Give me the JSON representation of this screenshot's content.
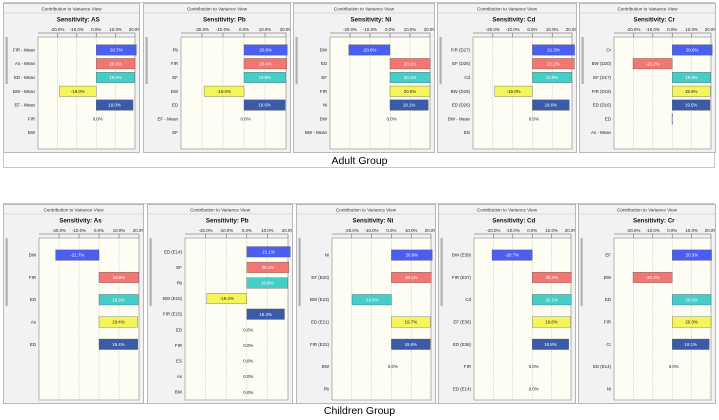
{
  "window_title": "Contribution to Variance View",
  "groups": [
    {
      "name": "adult",
      "label": "Adult Group"
    },
    {
      "name": "children",
      "label": "Children Group"
    }
  ],
  "colors": {
    "blue": "#4a5ff0",
    "red": "#f27672",
    "teal": "#45cdc8",
    "yellow": "#f3f55b",
    "navy": "#3b5aa8",
    "plot_bg": "#fdfdf3"
  },
  "chart_data": [
    {
      "group": "adult",
      "type": "bar",
      "title": "Sensitivity: AS",
      "xlim": [
        -30,
        20
      ],
      "ticks": [
        "-20.0%",
        "-10.0%",
        "0.0%",
        "10.0%",
        "20.0%"
      ],
      "rows": [
        {
          "label": "FIR - Mean",
          "value": 20.7,
          "text": "20.7%",
          "color": "blue"
        },
        {
          "label": "As - Mean",
          "value": 20.0,
          "text": "20.0%",
          "color": "red"
        },
        {
          "label": "ED - Mean",
          "value": 19.8,
          "text": "19.8%",
          "color": "teal"
        },
        {
          "label": "BW - Mean",
          "value": -19.0,
          "text": "-19.0%",
          "color": "yellow"
        },
        {
          "label": "EF - Mean",
          "value": 19.0,
          "text": "19.0%",
          "color": "navy"
        },
        {
          "label": "FIR",
          "value": 0.0,
          "text": "0.0%",
          "color": "blue"
        },
        {
          "label": "BW",
          "value": 0.0,
          "text": "",
          "color": "blue"
        }
      ]
    },
    {
      "group": "adult",
      "type": "bar",
      "title": "Sensitivity: Pb",
      "xlim": [
        -30,
        20
      ],
      "ticks": [
        "-20.0%",
        "-10.0%",
        "0.0%",
        "10.0%",
        "20.0%"
      ],
      "rows": [
        {
          "label": "Pb",
          "value": 20.6,
          "text": "20.6%",
          "color": "blue"
        },
        {
          "label": "FIR",
          "value": 20.4,
          "text": "20.4%",
          "color": "red"
        },
        {
          "label": "EF",
          "value": 19.8,
          "text": "19.8%",
          "color": "teal"
        },
        {
          "label": "BW",
          "value": -19.0,
          "text": "-19.0%",
          "color": "yellow"
        },
        {
          "label": "ED",
          "value": 19.6,
          "text": "19.6%",
          "color": "navy"
        },
        {
          "label": "EF - Mean",
          "value": 0.0,
          "text": "0.0%",
          "color": "blue"
        },
        {
          "label": "EF",
          "value": 0.0,
          "text": "",
          "color": "blue"
        }
      ]
    },
    {
      "group": "adult",
      "type": "bar",
      "title": "Sensitivity: Ni",
      "xlim": [
        -30,
        20
      ],
      "ticks": [
        "-20.0%",
        "-10.0%",
        "0.0%",
        "10.0%",
        "20.0%"
      ],
      "rows": [
        {
          "label": "BW",
          "value": -20.6,
          "text": "-20.6%",
          "color": "blue"
        },
        {
          "label": "ED",
          "value": 20.1,
          "text": "20.1%",
          "color": "red"
        },
        {
          "label": "EF",
          "value": 20.1,
          "text": "20.1%",
          "color": "teal"
        },
        {
          "label": "FIR",
          "value": 20.0,
          "text": "20.0%",
          "color": "yellow"
        },
        {
          "label": "Ni",
          "value": 19.1,
          "text": "19.1%",
          "color": "navy"
        },
        {
          "label": "BW",
          "value": 0.0,
          "text": "0.0%",
          "color": "blue"
        },
        {
          "label": "BW - Mean",
          "value": 0.0,
          "text": "",
          "color": "blue"
        }
      ]
    },
    {
      "group": "adult",
      "type": "bar",
      "title": "Sensitivity: Cd",
      "xlim": [
        -30,
        20
      ],
      "ticks": [
        "-20.0%",
        "-10.0%",
        "0.0%",
        "10.0%",
        "20.0%"
      ],
      "rows": [
        {
          "label": "FIR (D27)",
          "value": 21.3,
          "text": "21.3%",
          "color": "blue"
        },
        {
          "label": "EF (D26)",
          "value": 21.2,
          "text": "21.2%",
          "color": "red"
        },
        {
          "label": "Cd",
          "value": 19.8,
          "text": "19.8%",
          "color": "teal"
        },
        {
          "label": "BW (D29)",
          "value": -19.0,
          "text": "-19.0%",
          "color": "yellow"
        },
        {
          "label": "ED (D26)",
          "value": 18.6,
          "text": "18.6%",
          "color": "navy"
        },
        {
          "label": "BW - Mean",
          "value": 0.0,
          "text": "0.0%",
          "color": "blue"
        },
        {
          "label": "ED",
          "value": 0.0,
          "text": "",
          "color": "blue"
        }
      ]
    },
    {
      "group": "adult",
      "type": "bar",
      "title": "Sensitivity: Cr",
      "xlim": [
        -30,
        20
      ],
      "ticks": [
        "-20.0%",
        "-10.0%",
        "0.0%",
        "10.0%",
        "20.0%"
      ],
      "rows": [
        {
          "label": "Cr",
          "value": 20.6,
          "text": "20.6%",
          "color": "blue"
        },
        {
          "label": "BW (D20)",
          "value": -20.2,
          "text": "-20.2%",
          "color": "red"
        },
        {
          "label": "EF (D17)",
          "value": 19.9,
          "text": "19.9%",
          "color": "teal"
        },
        {
          "label": "FIR (D18)",
          "value": 19.6,
          "text": "19.6%",
          "color": "yellow"
        },
        {
          "label": "ED (D16)",
          "value": 19.5,
          "text": "19.5%",
          "color": "navy"
        },
        {
          "label": "ED",
          "value": -0.1,
          "text": "-0.1%",
          "color": "blue"
        },
        {
          "label": "As - Mean",
          "value": 0.0,
          "text": "",
          "color": "blue"
        }
      ]
    },
    {
      "group": "children",
      "type": "bar",
      "title": "Sensitivity: As",
      "xlim": [
        -30,
        20
      ],
      "ticks": [
        "-20.0%",
        "-10.0%",
        "0.0%",
        "10.0%",
        "20.0%"
      ],
      "rows": [
        {
          "label": "BW",
          "value": -21.7,
          "text": "-21.7%",
          "color": "blue"
        },
        {
          "label": "FIR",
          "value": 19.9,
          "text": "19.9%",
          "color": "red"
        },
        {
          "label": "ED",
          "value": 19.6,
          "text": "19.6%",
          "color": "teal"
        },
        {
          "label": "As",
          "value": 19.4,
          "text": "19.4%",
          "color": "yellow"
        },
        {
          "label": "ED",
          "value": 19.4,
          "text": "19.4%",
          "color": "navy"
        }
      ]
    },
    {
      "group": "children",
      "type": "bar",
      "title": "Sensitivity: Pb",
      "xlim": [
        -30,
        20
      ],
      "ticks": [
        "-20.0%",
        "-10.0%",
        "0.0%",
        "10.0%",
        "20.0%"
      ],
      "rows": [
        {
          "label": "ED (E14)",
          "value": 21.1,
          "text": "21.1%",
          "color": "blue"
        },
        {
          "label": "EF",
          "value": 20.4,
          "text": "20.4%",
          "color": "red"
        },
        {
          "label": "Pb",
          "value": 19.8,
          "text": "19.8%",
          "color": "teal"
        },
        {
          "label": "BW (E16)",
          "value": -19.4,
          "text": "-19.4%",
          "color": "yellow"
        },
        {
          "label": "FIR (E15)",
          "value": 18.3,
          "text": "18.3%",
          "color": "navy"
        },
        {
          "label": "ED",
          "value": 0.0,
          "text": "0.0%",
          "color": "blue"
        },
        {
          "label": "FIR",
          "value": 0.0,
          "text": "0.0%",
          "color": "blue"
        },
        {
          "label": "ES",
          "value": 0.0,
          "text": "0.0%",
          "color": "blue"
        },
        {
          "label": "As",
          "value": 0.0,
          "text": "0.0%",
          "color": "blue"
        },
        {
          "label": "BW",
          "value": 0.0,
          "text": "0.0%",
          "color": "blue"
        }
      ]
    },
    {
      "group": "children",
      "type": "bar",
      "title": "Sensitivity: Ni",
      "xlim": [
        -30,
        20
      ],
      "ticks": [
        "-20.0%",
        "-10.0%",
        "0.0%",
        "10.0%",
        "20.0%"
      ],
      "rows": [
        {
          "label": "Ni",
          "value": 20.6,
          "text": "20.6%",
          "color": "blue"
        },
        {
          "label": "EF (E20)",
          "value": 20.1,
          "text": "20.1%",
          "color": "red"
        },
        {
          "label": "BW (E23)",
          "value": -19.9,
          "text": "-19.9%",
          "color": "teal"
        },
        {
          "label": "ED (E21)",
          "value": 19.7,
          "text": "19.7%",
          "color": "yellow"
        },
        {
          "label": "FIR (E22)",
          "value": 19.6,
          "text": "19.6%",
          "color": "navy"
        },
        {
          "label": "BW",
          "value": 0.0,
          "text": "0.0%",
          "color": "blue"
        },
        {
          "label": "Pb",
          "value": 0.0,
          "text": "",
          "color": "blue"
        }
      ]
    },
    {
      "group": "children",
      "type": "bar",
      "title": "Sensitivity: Cd",
      "xlim": [
        -30,
        20
      ],
      "ticks": [
        "-20.0%",
        "-10.0%",
        "0.0%",
        "10.0%",
        "20.0%"
      ],
      "rows": [
        {
          "label": "BW (E39)",
          "value": -20.7,
          "text": "-20.7%",
          "color": "blue"
        },
        {
          "label": "FIR (E37)",
          "value": 20.2,
          "text": "20.2%",
          "color": "red"
        },
        {
          "label": "Cd",
          "value": 20.1,
          "text": "20.1%",
          "color": "teal"
        },
        {
          "label": "EF (E36)",
          "value": 19.8,
          "text": "19.8%",
          "color": "yellow"
        },
        {
          "label": "ED (E36)",
          "value": 18.8,
          "text": "18.8%",
          "color": "navy"
        },
        {
          "label": "FIR",
          "value": 0.0,
          "text": "0.0%",
          "color": "blue"
        },
        {
          "label": "ED (E14)",
          "value": 0.0,
          "text": "0.0%",
          "color": "blue"
        }
      ]
    },
    {
      "group": "children",
      "type": "bar",
      "title": "Sensitivity: Cr",
      "xlim": [
        -30,
        20
      ],
      "ticks": [
        "-20.0%",
        "-10.0%",
        "0.0%",
        "10.0%",
        "20.0%"
      ],
      "rows": [
        {
          "label": "EF",
          "value": 20.3,
          "text": "20.3%",
          "color": "blue"
        },
        {
          "label": "BW",
          "value": -20.2,
          "text": "-20.2%",
          "color": "red"
        },
        {
          "label": "ED",
          "value": 20.0,
          "text": "20.0%",
          "color": "teal"
        },
        {
          "label": "FIR",
          "value": 20.0,
          "text": "20.0%",
          "color": "yellow"
        },
        {
          "label": "Cr",
          "value": 19.1,
          "text": "19.1%",
          "color": "navy"
        },
        {
          "label": "ED (E14)",
          "value": 0.0,
          "text": "0.0%",
          "color": "blue"
        },
        {
          "label": "Ni",
          "value": 0.0,
          "text": "",
          "color": "blue"
        }
      ]
    }
  ]
}
